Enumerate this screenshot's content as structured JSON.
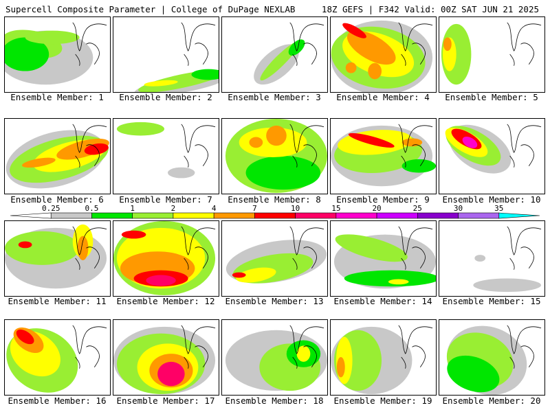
{
  "header": {
    "title_left": "Supercell Composite Parameter | College of DuPage NEXLAB",
    "title_right": "18Z GEFS | F342 Valid: 00Z SAT JUN 21 2025"
  },
  "member_prefix": "Ensemble Member:",
  "members": [
    {
      "label": "Ensemble Member: 1"
    },
    {
      "label": "Ensemble Member: 2"
    },
    {
      "label": "Ensemble Member: 3"
    },
    {
      "label": "Ensemble Member: 4"
    },
    {
      "label": "Ensemble Member: 5"
    },
    {
      "label": "Ensemble Member: 6"
    },
    {
      "label": "Ensemble Member: 7"
    },
    {
      "label": "Ensemble Member: 8"
    },
    {
      "label": "Ensemble Member: 9"
    },
    {
      "label": "Ensemble Member: 10"
    },
    {
      "label": "Ensemble Member: 11"
    },
    {
      "label": "Ensemble Member: 12"
    },
    {
      "label": "Ensemble Member: 13"
    },
    {
      "label": "Ensemble Member: 14"
    },
    {
      "label": "Ensemble Member: 15"
    },
    {
      "label": "Ensemble Member: 16"
    },
    {
      "label": "Ensemble Member: 17"
    },
    {
      "label": "Ensemble Member: 18"
    },
    {
      "label": "Ensemble Member: 19"
    },
    {
      "label": "Ensemble Member: 20"
    }
  ],
  "colorbar": {
    "levels": [
      "0.25",
      "0.5",
      "1",
      "2",
      "4",
      "7",
      "10",
      "15",
      "20",
      "25",
      "30",
      "35"
    ],
    "colors": [
      "#c8c8c8",
      "#00e600",
      "#99ee33",
      "#ffff00",
      "#ff9900",
      "#ff0000",
      "#ff0066",
      "#ff00cc",
      "#cc00ff",
      "#8800cc",
      "#aa66ee",
      "#00ffff"
    ]
  }
}
